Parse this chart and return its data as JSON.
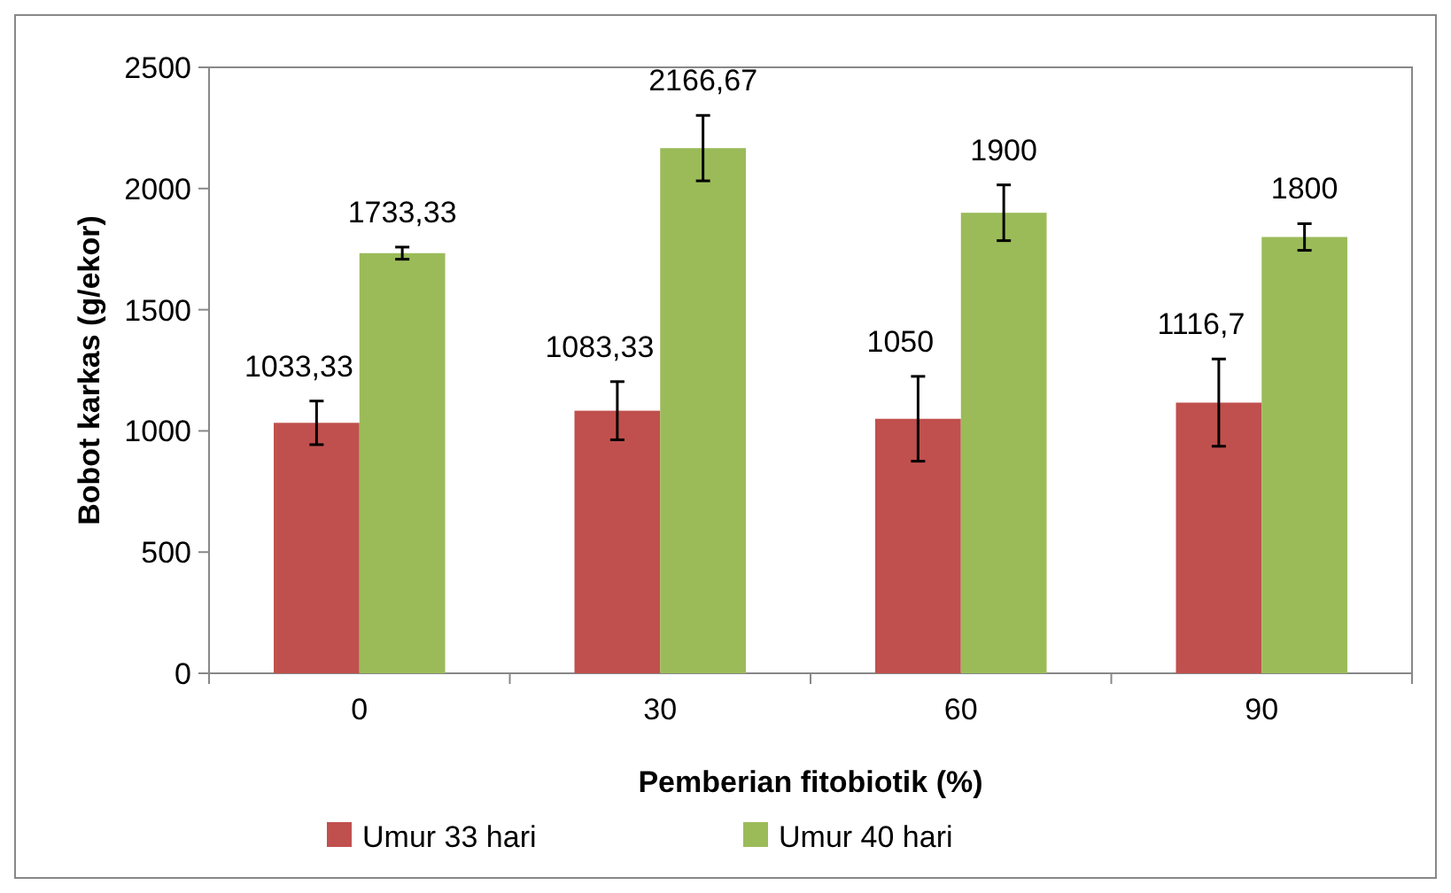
{
  "chart_data": {
    "type": "bar",
    "xlabel": "Pemberian fitobiotik (%)",
    "ylabel": "Bobot karkas (g/ekor)",
    "categories": [
      "0",
      "30",
      "60",
      "90"
    ],
    "ylim": [
      0,
      2500
    ],
    "yticks": [
      0,
      500,
      1000,
      1500,
      2000,
      2500
    ],
    "legend": "bottom",
    "grid": false,
    "series": [
      {
        "name": "Umur 33 hari",
        "color": "#c0504d",
        "values": [
          1033.33,
          1083.33,
          1050,
          1116.7
        ],
        "errors": [
          90,
          120,
          175,
          180
        ],
        "value_labels": [
          "1033,33",
          "1083,33",
          "1050",
          "1116,7"
        ]
      },
      {
        "name": "Umur 40 hari",
        "color": "#9bbb59",
        "values": [
          1733.33,
          2166.67,
          1900,
          1800
        ],
        "errors": [
          25,
          135,
          115,
          55
        ],
        "value_labels": [
          "1733,33",
          "2166,67",
          "1900",
          "1800"
        ]
      }
    ]
  }
}
